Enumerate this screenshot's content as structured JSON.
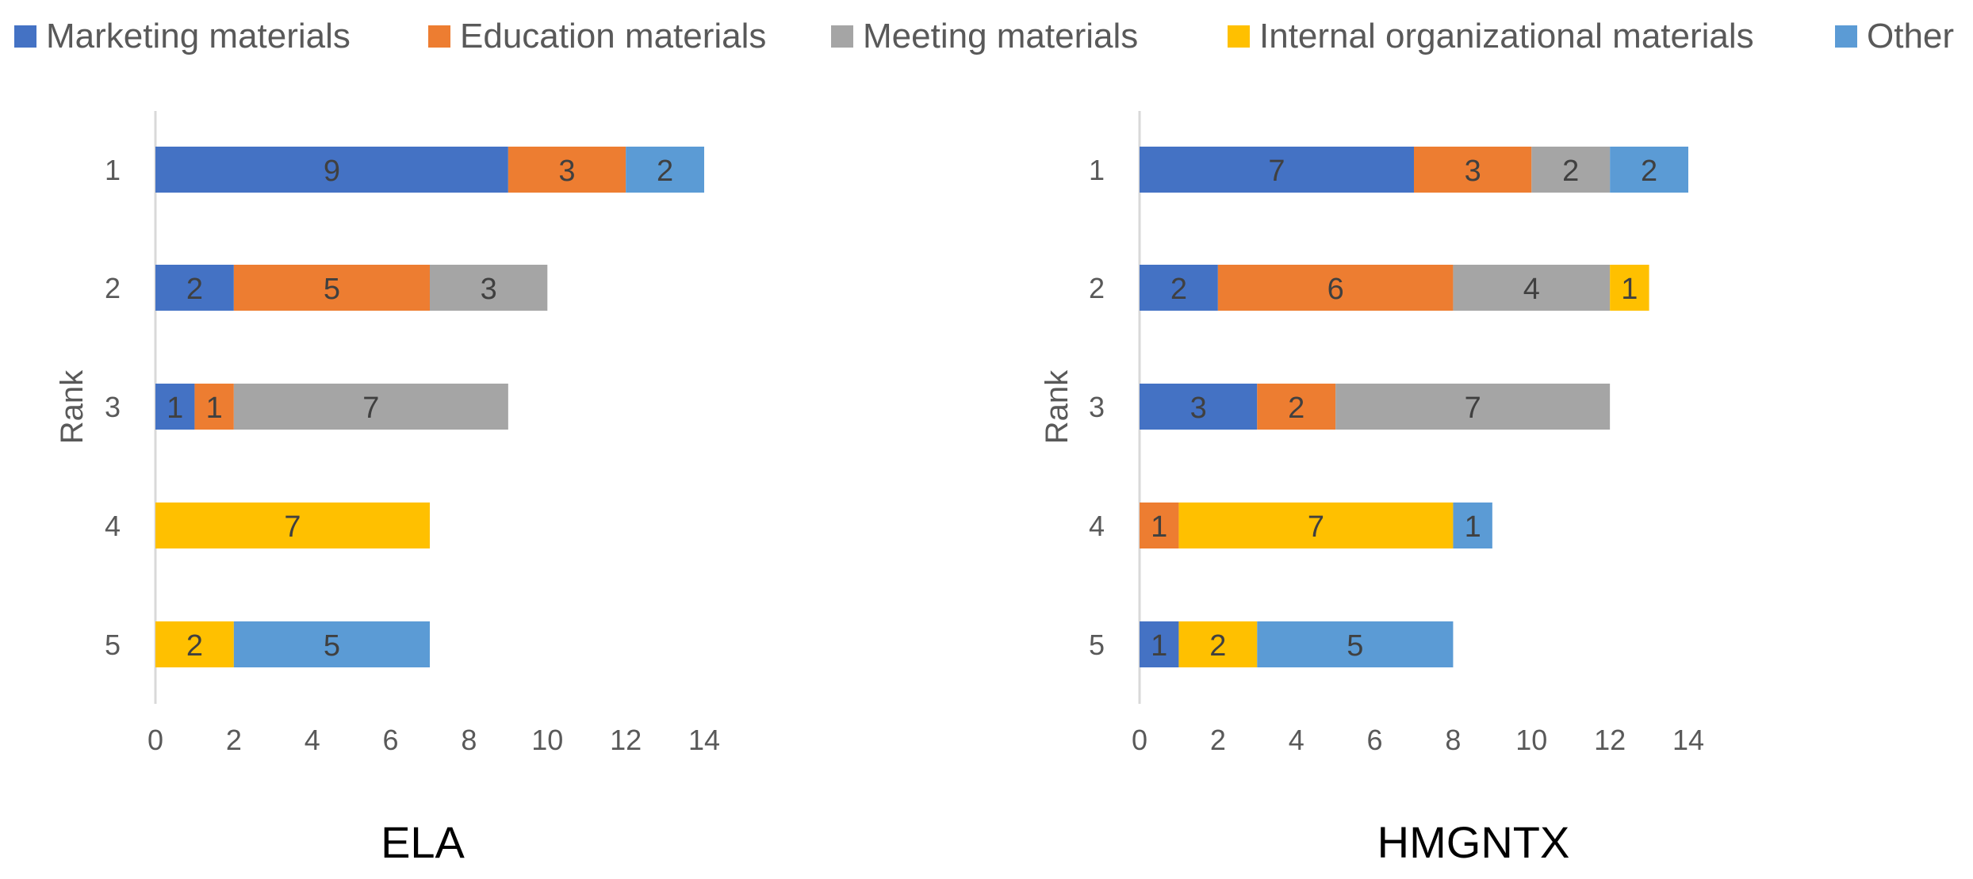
{
  "legend": [
    {
      "name": "Marketing materials",
      "color": "#4472C4"
    },
    {
      "name": "Education materials",
      "color": "#ED7D31"
    },
    {
      "name": "Meeting materials",
      "color": "#A5A5A5"
    },
    {
      "name": "Internal organizational materials",
      "color": "#FFC000"
    },
    {
      "name": "Other",
      "color": "#5B9BD5"
    }
  ],
  "chart_data": [
    {
      "type": "bar",
      "orientation": "horizontal",
      "stacked": true,
      "title": "ELA",
      "ylabel": "Rank",
      "xlim": [
        0,
        14
      ],
      "xticks": [
        0,
        2,
        4,
        6,
        8,
        10,
        12,
        14
      ],
      "categories": [
        "1",
        "2",
        "3",
        "4",
        "5"
      ],
      "series": [
        {
          "name": "Marketing materials",
          "values": [
            9,
            2,
            1,
            0,
            0
          ]
        },
        {
          "name": "Education materials",
          "values": [
            3,
            5,
            1,
            0,
            0
          ]
        },
        {
          "name": "Meeting materials",
          "values": [
            0,
            3,
            7,
            0,
            0
          ]
        },
        {
          "name": "Internal organizational materials",
          "values": [
            0,
            0,
            0,
            7,
            2
          ]
        },
        {
          "name": "Other",
          "values": [
            2,
            0,
            0,
            0,
            5
          ]
        }
      ],
      "data_labels": true,
      "legend_position": "top"
    },
    {
      "type": "bar",
      "orientation": "horizontal",
      "stacked": true,
      "title": "HMGNTX",
      "ylabel": "Rank",
      "xlim": [
        0,
        14
      ],
      "xticks": [
        0,
        2,
        4,
        6,
        8,
        10,
        12,
        14
      ],
      "categories": [
        "1",
        "2",
        "3",
        "4",
        "5"
      ],
      "series": [
        {
          "name": "Marketing materials",
          "values": [
            7,
            2,
            3,
            0,
            1
          ]
        },
        {
          "name": "Education materials",
          "values": [
            3,
            6,
            2,
            1,
            0
          ]
        },
        {
          "name": "Meeting materials",
          "values": [
            2,
            4,
            7,
            0,
            0
          ]
        },
        {
          "name": "Internal organizational materials",
          "values": [
            0,
            1,
            0,
            7,
            2
          ]
        },
        {
          "name": "Other",
          "values": [
            2,
            0,
            0,
            1,
            5
          ]
        }
      ],
      "data_labels": true,
      "legend_position": "top"
    }
  ]
}
